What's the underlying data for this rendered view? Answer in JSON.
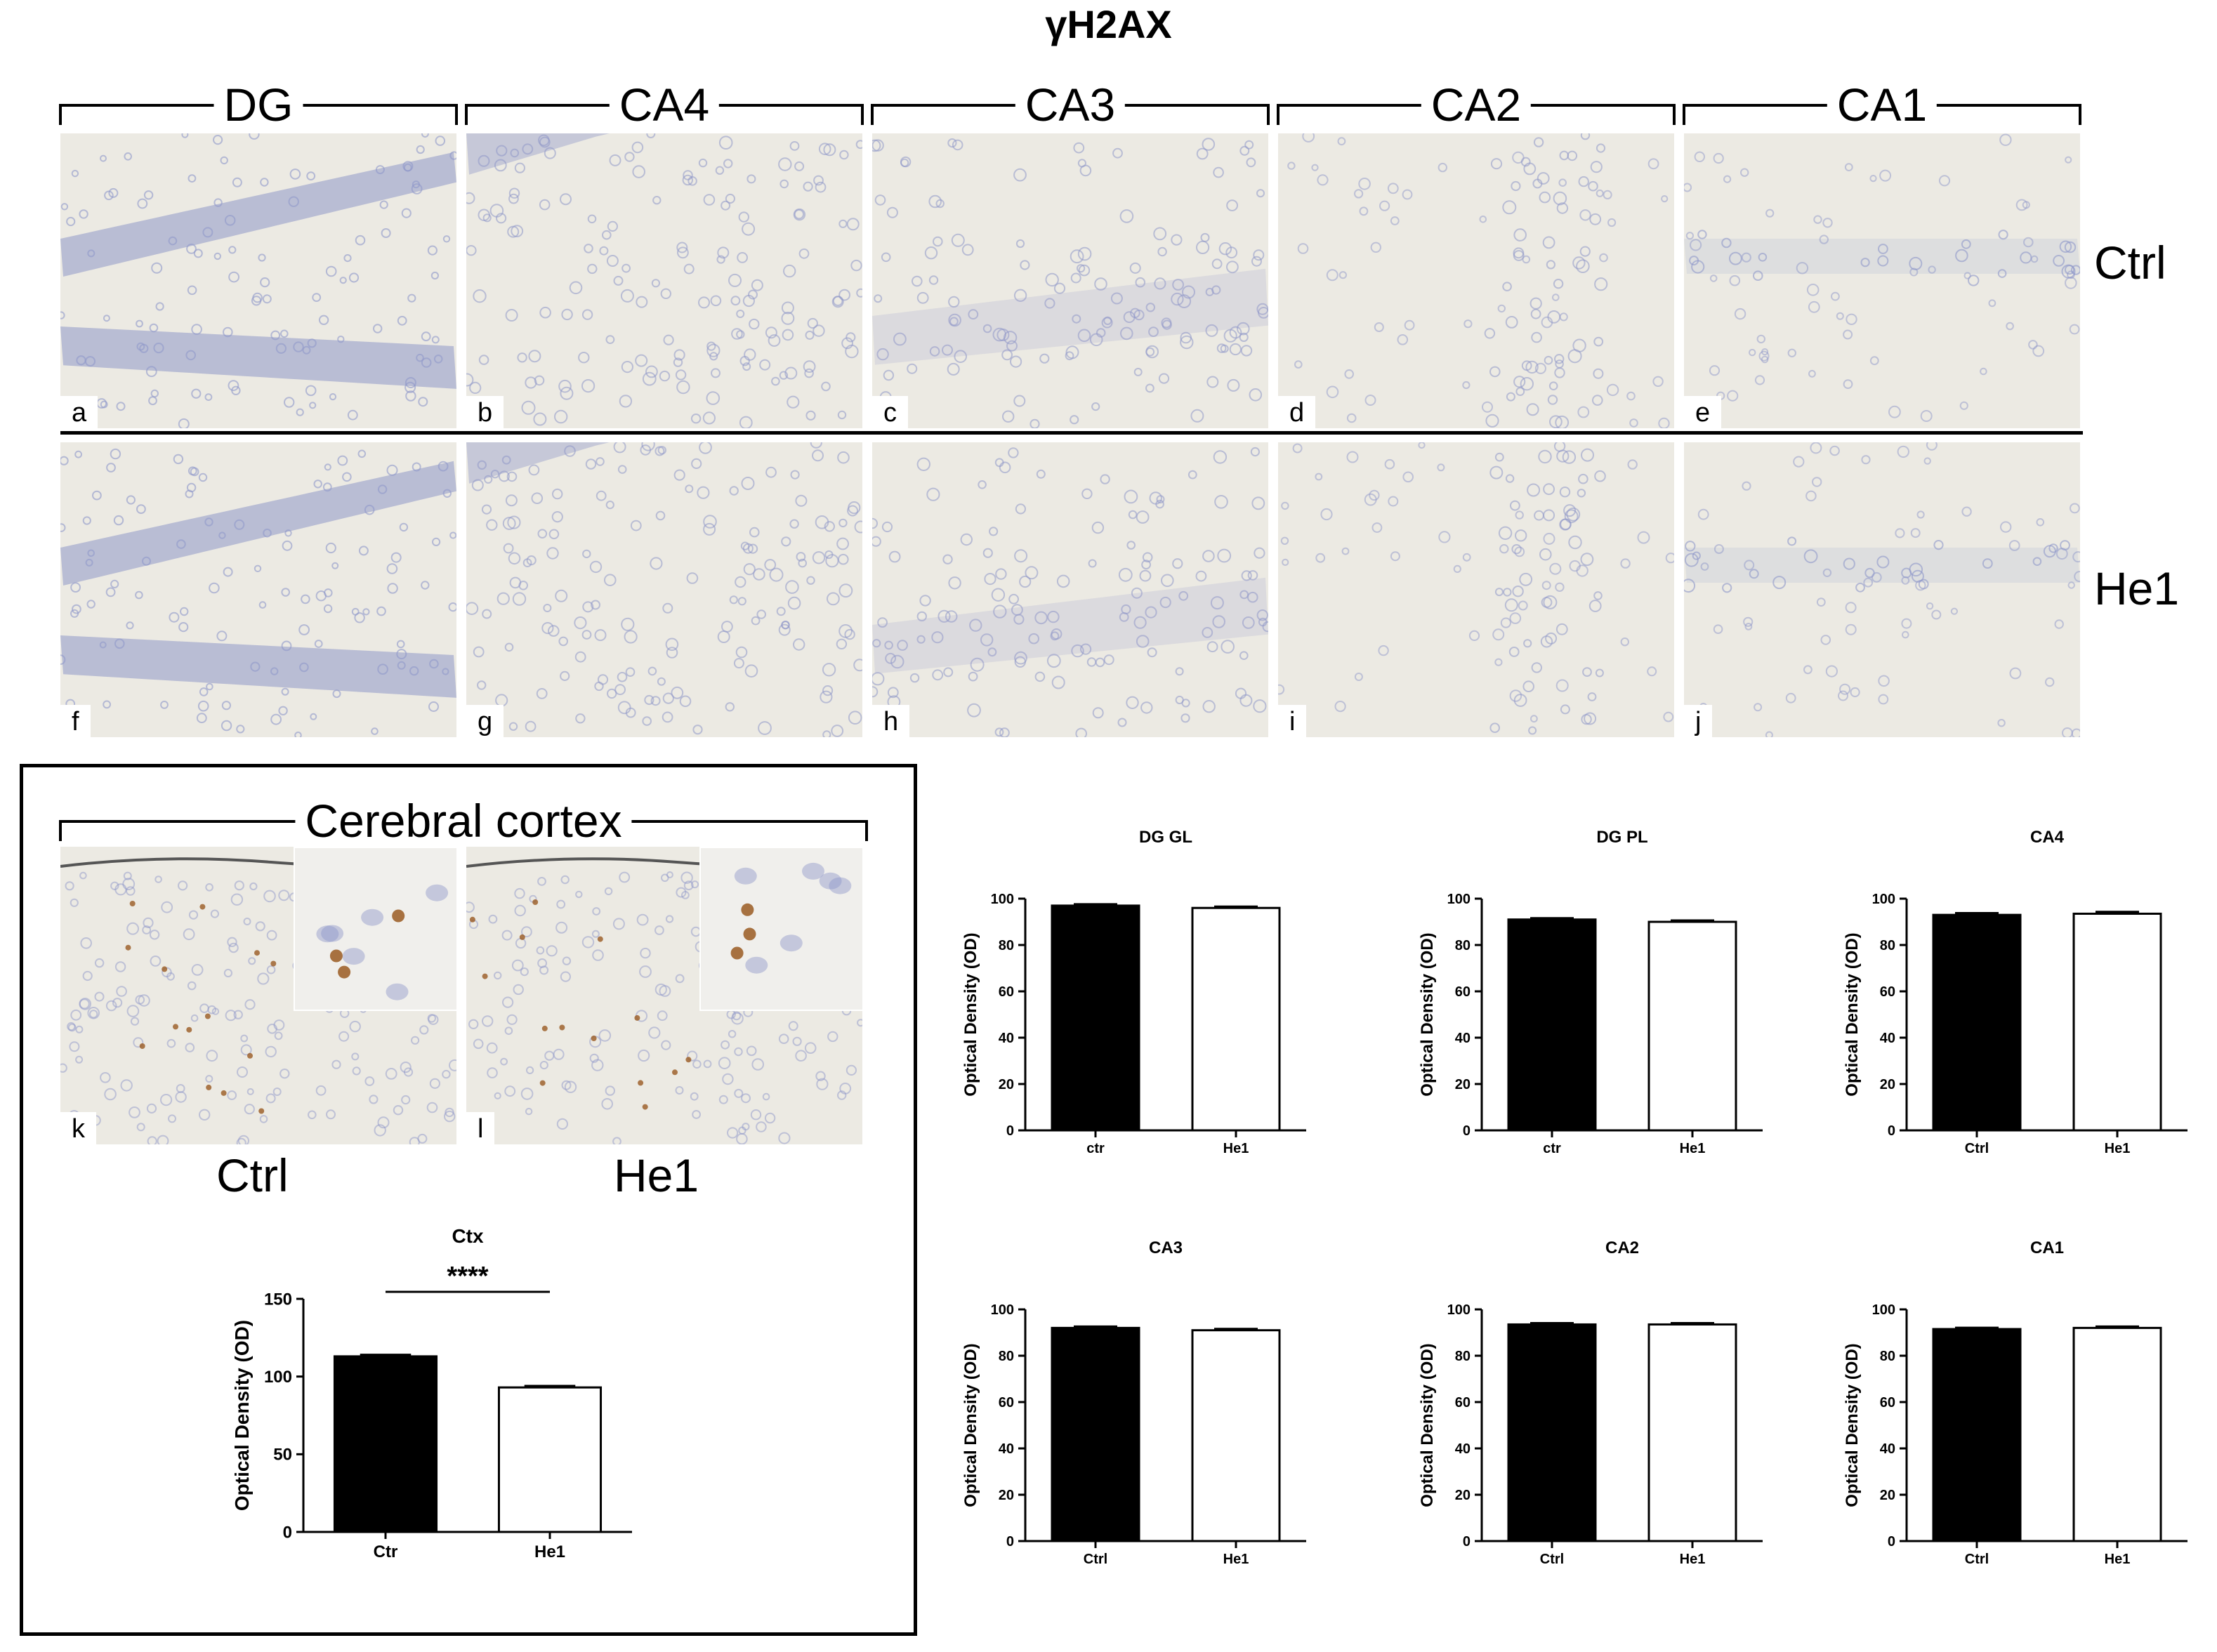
{
  "figure": {
    "title": "γH2AX",
    "regions": [
      "DG",
      "CA4",
      "CA3",
      "CA2",
      "CA1"
    ],
    "row_labels": [
      "Ctrl",
      "He1"
    ],
    "panel_letters": [
      "a",
      "b",
      "c",
      "d",
      "e",
      "f",
      "g",
      "h",
      "i",
      "j"
    ],
    "cortex": {
      "title": "Cerebral cortex",
      "panel_letters": [
        "k",
        "l"
      ],
      "condition_labels": [
        "Ctrl",
        "He1"
      ]
    }
  },
  "colors": {
    "tissue_bg": "#eceae3",
    "nuclei": "#8f97c9",
    "dab": "#9a5a22",
    "bar_ctrl": "#000000",
    "bar_he1": "#ffffff"
  },
  "chart_data": [
    {
      "type": "bar",
      "title": "Ctx",
      "categories": [
        "Ctr",
        "He1"
      ],
      "values": [
        113,
        93
      ],
      "errors": [
        1,
        1
      ],
      "ylabel": "Optical Density (OD)",
      "ylim": [
        0,
        150
      ],
      "yticks": [
        0,
        50,
        100,
        150
      ],
      "significance": "****"
    },
    {
      "type": "bar",
      "title": "DG GL",
      "categories": [
        "ctr",
        "He1"
      ],
      "values": [
        97,
        96
      ],
      "errors": [
        0.6,
        0.6
      ],
      "ylabel": "Optical Density (OD)",
      "ylim": [
        0,
        100
      ],
      "yticks": [
        0,
        20,
        40,
        60,
        80,
        100
      ]
    },
    {
      "type": "bar",
      "title": "DG PL",
      "categories": [
        "ctr",
        "He1"
      ],
      "values": [
        91,
        90
      ],
      "errors": [
        0.6,
        0.6
      ],
      "ylabel": "Optical Density (OD)",
      "ylim": [
        0,
        100
      ],
      "yticks": [
        0,
        20,
        40,
        60,
        80,
        100
      ]
    },
    {
      "type": "bar",
      "title": "CA4",
      "categories": [
        "Ctrl",
        "He1"
      ],
      "values": [
        93,
        93.5
      ],
      "errors": [
        0.8,
        0.8
      ],
      "ylabel": "Optical Density (OD)",
      "ylim": [
        0,
        100
      ],
      "yticks": [
        0,
        20,
        40,
        60,
        80,
        100
      ]
    },
    {
      "type": "bar",
      "title": "CA3",
      "categories": [
        "Ctrl",
        "He1"
      ],
      "values": [
        92,
        91
      ],
      "errors": [
        0.6,
        0.6
      ],
      "ylabel": "Optical Density (OD)",
      "ylim": [
        0,
        100
      ],
      "yticks": [
        0,
        20,
        40,
        60,
        80,
        100
      ]
    },
    {
      "type": "bar",
      "title": "CA2",
      "categories": [
        "Ctrl",
        "He1"
      ],
      "values": [
        93.5,
        93.5
      ],
      "errors": [
        0.6,
        0.6
      ],
      "ylabel": "Optical Density (OD)",
      "ylim": [
        0,
        100
      ],
      "yticks": [
        0,
        20,
        40,
        60,
        80,
        100
      ]
    },
    {
      "type": "bar",
      "title": "CA1",
      "categories": [
        "Ctrl",
        "He1"
      ],
      "values": [
        91.5,
        92
      ],
      "errors": [
        0.6,
        0.6
      ],
      "ylabel": "Optical Density (OD)",
      "ylim": [
        0,
        100
      ],
      "yticks": [
        0,
        20,
        40,
        60,
        80,
        100
      ]
    }
  ]
}
